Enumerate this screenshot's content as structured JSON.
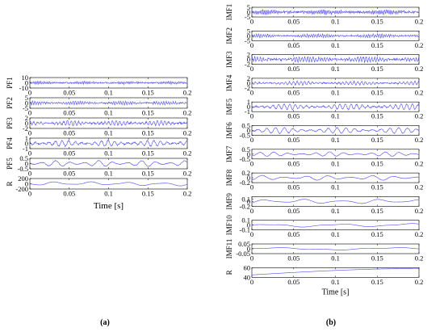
{
  "panels": [
    {
      "caption": "(a)",
      "xlabel": "Time [s]",
      "x_range": [
        0,
        0.2
      ],
      "x_ticks": [
        0,
        0.05,
        0.1,
        0.15,
        0.2
      ],
      "x_tick_labels": [
        "0",
        "0.05",
        "0.1",
        "0.15",
        "0.2"
      ],
      "rows": [
        {
          "label": "PF1",
          "ylim": [
            -10,
            10
          ],
          "y_ticks": [
            -10,
            0,
            10
          ],
          "y_tick_labels": [
            "-10",
            "0",
            "10"
          ],
          "amp": 2.2,
          "freq": 450,
          "noise": 1.0
        },
        {
          "label": "PF2",
          "ylim": [
            -5,
            5
          ],
          "y_ticks": [
            -5,
            0,
            5
          ],
          "y_tick_labels": [
            "-5",
            "0",
            "5"
          ],
          "amp": 1.5,
          "freq": 330,
          "noise": 0.9
        },
        {
          "label": "PF3",
          "ylim": [
            -2,
            2
          ],
          "y_ticks": [
            -2,
            0,
            2
          ],
          "y_tick_labels": [
            "-2",
            "0",
            "2"
          ],
          "amp": 0.8,
          "freq": 210,
          "noise": 0.8
        },
        {
          "label": "PF4",
          "ylim": [
            -1,
            1
          ],
          "y_ticks": [
            -1,
            0,
            1
          ],
          "y_tick_labels": [
            "-1",
            "0",
            "1"
          ],
          "amp": 0.55,
          "freq": 120,
          "noise": 0.5
        },
        {
          "label": "PF5",
          "ylim": [
            -0.5,
            0.5
          ],
          "y_ticks": [
            -0.5,
            0,
            0.5
          ],
          "y_tick_labels": [
            "-0.5",
            "0",
            "0.5"
          ],
          "amp": 0.28,
          "freq": 55,
          "noise": 0.2
        },
        {
          "label": "R",
          "ylim": [
            -200,
            200
          ],
          "y_ticks": [
            -200,
            0,
            200
          ],
          "y_tick_labels": [
            "-200",
            "0",
            "200"
          ],
          "amp": 80,
          "freq": 22,
          "noise": 0.05
        }
      ]
    },
    {
      "caption": "(b)",
      "xlabel": "Time [s]",
      "x_range": [
        0,
        0.2
      ],
      "x_ticks": [
        0,
        0.05,
        0.1,
        0.15,
        0.2
      ],
      "x_tick_labels": [
        "0",
        "0.05",
        "0.1",
        "0.15",
        "0.2"
      ],
      "rows": [
        {
          "label": "IMF1",
          "ylim": [
            -5,
            5
          ],
          "y_ticks": [
            -5,
            0,
            5
          ],
          "y_tick_labels": [
            "-5",
            "0",
            "5"
          ],
          "amp": 2.0,
          "freq": 480,
          "noise": 1.0
        },
        {
          "label": "IMF2",
          "ylim": [
            -5,
            5
          ],
          "y_ticks": [
            -5,
            0,
            5
          ],
          "y_tick_labels": [
            "-5",
            "0",
            "5"
          ],
          "amp": 1.6,
          "freq": 380,
          "noise": 0.9
        },
        {
          "label": "IMF3",
          "ylim": [
            -2,
            2
          ],
          "y_ticks": [
            -2,
            0,
            2
          ],
          "y_tick_labels": [
            "-2",
            "0",
            "2"
          ],
          "amp": 1.0,
          "freq": 300,
          "noise": 0.9
        },
        {
          "label": "IMF4",
          "ylim": [
            -2,
            2
          ],
          "y_ticks": [
            -2,
            0,
            2
          ],
          "y_tick_labels": [
            "-2",
            "0",
            "2"
          ],
          "amp": 0.7,
          "freq": 220,
          "noise": 0.7
        },
        {
          "label": "IMF5",
          "ylim": [
            -1,
            1
          ],
          "y_ticks": [
            -1,
            0,
            1
          ],
          "y_tick_labels": [
            "-1",
            "0",
            "1"
          ],
          "amp": 0.55,
          "freq": 150,
          "noise": 0.5
        },
        {
          "label": "IMF6",
          "ylim": [
            -0.5,
            0.5
          ],
          "y_ticks": [
            -0.5,
            0,
            0.5
          ],
          "y_tick_labels": [
            "-0.5",
            "0",
            "0.5"
          ],
          "amp": 0.3,
          "freq": 95,
          "noise": 0.3
        },
        {
          "label": "IMF7",
          "ylim": [
            -0.5,
            0.5
          ],
          "y_ticks": [
            -0.5,
            0,
            0.5
          ],
          "y_tick_labels": [
            "-0.5",
            "0",
            "0.5"
          ],
          "amp": 0.22,
          "freq": 60,
          "noise": 0.2
        },
        {
          "label": "IMF8",
          "ylim": [
            -0.2,
            0.2
          ],
          "y_ticks": [
            -0.2,
            0,
            0.2
          ],
          "y_tick_labels": [
            "-0.2",
            "0",
            "0.2"
          ],
          "amp": 0.1,
          "freq": 38,
          "noise": 0.15
        },
        {
          "label": "IMF9",
          "ylim": [
            -0.2,
            0.2
          ],
          "y_ticks": [
            -0.2,
            0,
            0.1
          ],
          "y_tick_labels": [
            "-0.2",
            "0",
            "0.1"
          ],
          "amp": 0.1,
          "freq": 22,
          "noise": 0.05
        },
        {
          "label": "IMF10",
          "ylim": [
            -0.1,
            0.1
          ],
          "y_ticks": [
            -0.1,
            0,
            0.1
          ],
          "y_tick_labels": [
            "-0.1",
            "0",
            "0.1"
          ],
          "amp": 0.04,
          "freq": 12,
          "noise": 0.03
        },
        {
          "label": "IMF11",
          "ylim": [
            -0.05,
            0.05
          ],
          "y_ticks": [
            -0.05,
            0,
            0.05
          ],
          "y_tick_labels": [
            "-0.05",
            "0",
            "0.05"
          ],
          "amp": 0.02,
          "freq": 7,
          "noise": 0.0
        },
        {
          "label": "R",
          "ylim": [
            40,
            60
          ],
          "y_ticks": [
            40,
            60
          ],
          "y_tick_labels": [
            "40",
            "60"
          ],
          "amp": 0,
          "freq": 0,
          "noise": 0.0,
          "trend": [
            45,
            58
          ]
        }
      ]
    }
  ],
  "chart_data": {
    "type": "line",
    "xlabel": "Time [s]",
    "xlim": [
      0,
      0.2
    ],
    "line_color": "#4a4af0",
    "subplots_a": [
      "PF1",
      "PF2",
      "PF3",
      "PF4",
      "PF5",
      "R"
    ],
    "subplots_b": [
      "IMF1",
      "IMF2",
      "IMF3",
      "IMF4",
      "IMF5",
      "IMF6",
      "IMF7",
      "IMF8",
      "IMF9",
      "IMF10",
      "IMF11",
      "R"
    ]
  }
}
